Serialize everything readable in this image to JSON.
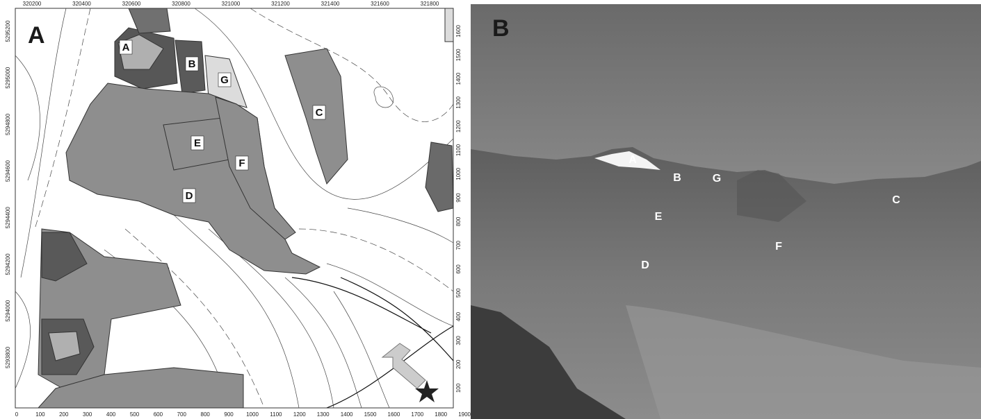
{
  "panel_a": {
    "label": "A",
    "top_ticks": [
      320200,
      320400,
      320600,
      320800,
      321000,
      321200,
      321400,
      321600,
      321800
    ],
    "bottom_ticks": [
      0,
      100,
      200,
      300,
      400,
      500,
      600,
      700,
      800,
      900,
      1000,
      1100,
      1200,
      1300,
      1400,
      1500,
      1600,
      1700,
      1800,
      1900
    ],
    "left_ticks": [
      5295200,
      5295000,
      5294800,
      5294600,
      5294400,
      5294200,
      5294000,
      5293800
    ],
    "right_ticks": [
      1600,
      1500,
      1400,
      1300,
      1200,
      1100,
      1000,
      900,
      800,
      700,
      600,
      500,
      400,
      300,
      200,
      100
    ],
    "map_labels": [
      "A",
      "B",
      "G",
      "C",
      "E",
      "F",
      "D"
    ]
  },
  "panel_b": {
    "label": "B",
    "photo_labels": [
      "A",
      "B",
      "G",
      "C",
      "E",
      "F",
      "D"
    ]
  }
}
